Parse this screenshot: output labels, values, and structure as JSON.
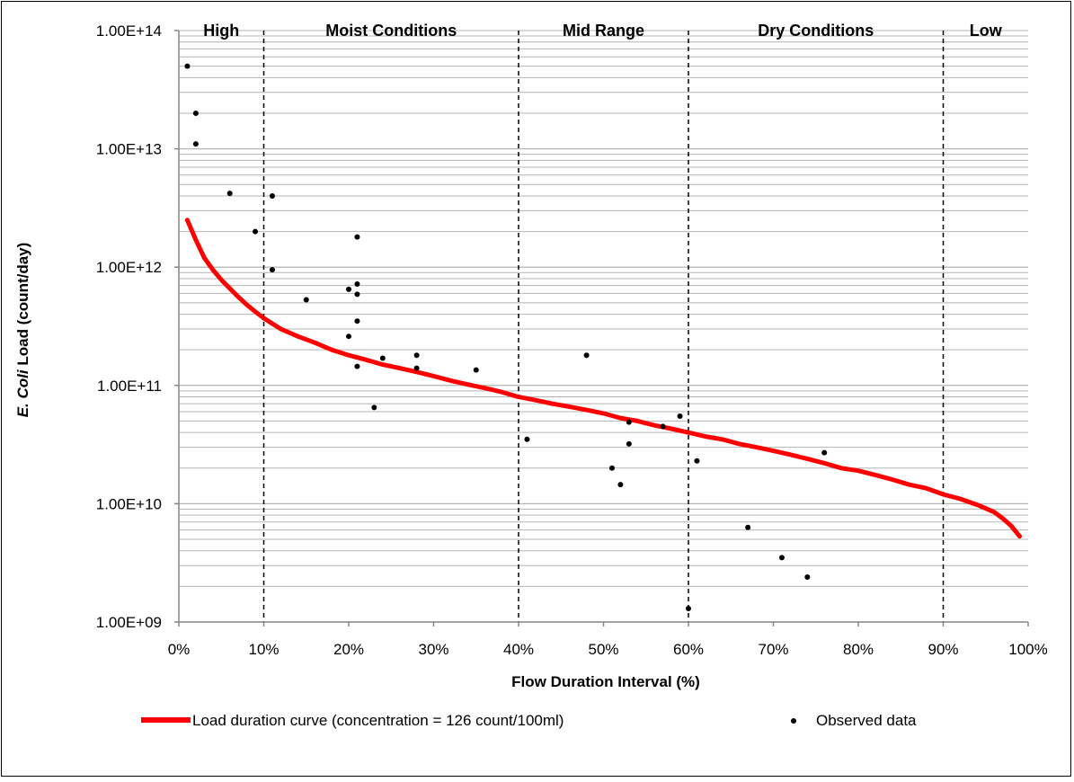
{
  "chart_data": {
    "type": "line",
    "x_scale": "linear",
    "y_scale": "log",
    "xlim": [
      0,
      100
    ],
    "ylim": [
      1000000000.0,
      100000000000000.0
    ],
    "grid": "horizontal",
    "legend_position": "bottom",
    "xlabel": "Flow Duration Interval (%)",
    "ylabel_italic": "E. Coli",
    "ylabel_rest": " Load (count/day)",
    "x_ticks": [
      {
        "value": 0,
        "label": "0%"
      },
      {
        "value": 10,
        "label": "10%"
      },
      {
        "value": 20,
        "label": "20%"
      },
      {
        "value": 30,
        "label": "30%"
      },
      {
        "value": 40,
        "label": "40%"
      },
      {
        "value": 50,
        "label": "50%"
      },
      {
        "value": 60,
        "label": "60%"
      },
      {
        "value": 70,
        "label": "70%"
      },
      {
        "value": 80,
        "label": "80%"
      },
      {
        "value": 90,
        "label": "90%"
      },
      {
        "value": 100,
        "label": "100%"
      }
    ],
    "y_ticks": [
      {
        "value": 1000000000.0,
        "label": "1.00E+09"
      },
      {
        "value": 10000000000.0,
        "label": "1.00E+10"
      },
      {
        "value": 100000000000.0,
        "label": "1.00E+11"
      },
      {
        "value": 1000000000000.0,
        "label": "1.00E+12"
      },
      {
        "value": 10000000000000.0,
        "label": "1.00E+13"
      },
      {
        "value": 100000000000000.0,
        "label": "1.00E+14"
      }
    ],
    "zone_boundaries": [
      10,
      40,
      60,
      90
    ],
    "zones": [
      {
        "label": "High",
        "from": 0,
        "to": 10
      },
      {
        "label": "Moist Conditions",
        "from": 10,
        "to": 40
      },
      {
        "label": "Mid Range",
        "from": 40,
        "to": 60
      },
      {
        "label": "Dry Conditions",
        "from": 60,
        "to": 90
      },
      {
        "label": "Low",
        "from": 90,
        "to": 100
      }
    ],
    "series": [
      {
        "name": "Load duration curve (concentration = 126 count/100ml)",
        "kind": "line",
        "color": "#ff0000",
        "points": [
          [
            1,
            2500000000000.0
          ],
          [
            2,
            1700000000000.0
          ],
          [
            3,
            1200000000000.0
          ],
          [
            4,
            950000000000.0
          ],
          [
            5,
            780000000000.0
          ],
          [
            6,
            660000000000.0
          ],
          [
            7,
            560000000000.0
          ],
          [
            8,
            480000000000.0
          ],
          [
            9,
            420000000000.0
          ],
          [
            10,
            370000000000.0
          ],
          [
            12,
            300000000000.0
          ],
          [
            14,
            260000000000.0
          ],
          [
            16,
            230000000000.0
          ],
          [
            18,
            200000000000.0
          ],
          [
            20,
            180000000000.0
          ],
          [
            22,
            165000000000.0
          ],
          [
            24,
            150000000000.0
          ],
          [
            26,
            140000000000.0
          ],
          [
            28,
            130000000000.0
          ],
          [
            30,
            120000000000.0
          ],
          [
            32,
            110000000000.0
          ],
          [
            34,
            102000000000.0
          ],
          [
            36,
            95000000000.0
          ],
          [
            38,
            88000000000.0
          ],
          [
            40,
            80000000000.0
          ],
          [
            42,
            75000000000.0
          ],
          [
            44,
            70000000000.0
          ],
          [
            46,
            66000000000.0
          ],
          [
            48,
            62000000000.0
          ],
          [
            50,
            58000000000.0
          ],
          [
            52,
            53000000000.0
          ],
          [
            54,
            50000000000.0
          ],
          [
            56,
            46000000000.0
          ],
          [
            58,
            43000000000.0
          ],
          [
            60,
            40000000000.0
          ],
          [
            62,
            37000000000.0
          ],
          [
            64,
            35000000000.0
          ],
          [
            66,
            32000000000.0
          ],
          [
            68,
            30000000000.0
          ],
          [
            70,
            28000000000.0
          ],
          [
            72,
            26000000000.0
          ],
          [
            74,
            24000000000.0
          ],
          [
            76,
            22000000000.0
          ],
          [
            78,
            20000000000.0
          ],
          [
            80,
            19000000000.0
          ],
          [
            82,
            17500000000.0
          ],
          [
            84,
            16000000000.0
          ],
          [
            86,
            14500000000.0
          ],
          [
            88,
            13500000000.0
          ],
          [
            90,
            12000000000.0
          ],
          [
            92,
            11000000000.0
          ],
          [
            94,
            9800000000.0
          ],
          [
            96,
            8500000000.0
          ],
          [
            97,
            7500000000.0
          ],
          [
            98,
            6500000000.0
          ],
          [
            99,
            5300000000.0
          ]
        ]
      },
      {
        "name": "Observed data",
        "kind": "scatter",
        "color": "#000000",
        "points": [
          [
            1,
            50000000000000.0
          ],
          [
            2,
            20000000000000.0
          ],
          [
            2,
            11000000000000.0
          ],
          [
            6,
            4200000000000.0
          ],
          [
            9,
            2000000000000.0
          ],
          [
            11,
            4000000000000.0
          ],
          [
            11,
            950000000000.0
          ],
          [
            15,
            530000000000.0
          ],
          [
            20,
            650000000000.0
          ],
          [
            20,
            260000000000.0
          ],
          [
            21,
            1800000000000.0
          ],
          [
            21,
            720000000000.0
          ],
          [
            21,
            590000000000.0
          ],
          [
            21,
            350000000000.0
          ],
          [
            21,
            145000000000.0
          ],
          [
            23,
            65000000000.0
          ],
          [
            24,
            170000000000.0
          ],
          [
            28,
            180000000000.0
          ],
          [
            28,
            140000000000.0
          ],
          [
            35,
            135000000000.0
          ],
          [
            41,
            35000000000.0
          ],
          [
            48,
            180000000000.0
          ],
          [
            51,
            20000000000.0
          ],
          [
            52,
            14500000000.0
          ],
          [
            53,
            49000000000.0
          ],
          [
            53,
            32000000000.0
          ],
          [
            57,
            45000000000.0
          ],
          [
            59,
            55000000000.0
          ],
          [
            60,
            1300000000.0
          ],
          [
            61,
            23000000000.0
          ],
          [
            67,
            6300000000.0
          ],
          [
            71,
            3500000000.0
          ],
          [
            74,
            2400000000.0
          ],
          [
            76,
            27000000000.0
          ]
        ]
      }
    ]
  }
}
